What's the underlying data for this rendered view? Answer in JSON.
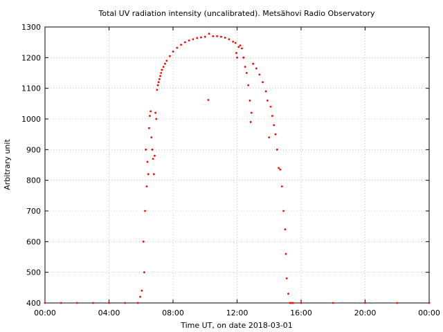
{
  "chart_data": {
    "type": "scatter",
    "title": "Total UV radiation intensity (uncalibrated). Metsähovi Radio Observatory",
    "xlabel": "Time UT, on date 2018-03-01",
    "ylabel": "Arbitrary unit",
    "xlim": [
      0,
      24
    ],
    "ylim": [
      400,
      1300
    ],
    "x_ticks": [
      0,
      4,
      8,
      12,
      16,
      20,
      24
    ],
    "x_tick_labels": [
      "00:00",
      "04:00",
      "08:00",
      "12:00",
      "16:00",
      "20:00",
      "00:00"
    ],
    "y_ticks": [
      400,
      500,
      600,
      700,
      800,
      900,
      1000,
      1100,
      1200,
      1300
    ],
    "y_tick_labels": [
      "400",
      "500",
      "600",
      "700",
      "800",
      "900",
      "1000",
      "1100",
      "1200",
      "1300"
    ],
    "grid": true,
    "marker_color": "#ff0000",
    "series": [
      {
        "x": [
          0,
          1,
          2,
          3,
          4,
          5,
          5.8,
          5.95,
          6.05,
          6.15,
          6.2,
          6.25,
          6.3,
          6.35,
          6.4,
          6.45,
          6.5,
          6.55,
          6.6,
          6.65,
          6.7,
          6.75,
          6.8,
          6.85,
          6.9,
          6.95,
          7.0,
          7.05,
          7.1,
          7.15,
          7.2,
          7.25,
          7.3,
          7.4,
          7.5,
          7.6,
          7.8,
          8.0,
          8.25,
          8.5,
          8.75,
          9.0,
          9.25,
          9.5,
          9.75,
          10.0,
          10.2,
          10.25,
          10.5,
          10.75,
          11.0,
          11.25,
          11.5,
          11.75,
          11.9,
          11.95,
          12.0,
          12.1,
          12.2,
          12.3,
          12.4,
          12.5,
          12.6,
          12.7,
          12.8,
          12.85,
          12.9,
          13.0,
          13.2,
          13.4,
          13.6,
          13.8,
          13.9,
          14.0,
          14.1,
          14.2,
          14.3,
          14.4,
          14.5,
          14.6,
          14.7,
          14.8,
          14.9,
          15.0,
          15.05,
          15.1,
          15.2,
          15.3,
          15.4,
          15.5,
          16,
          18,
          20,
          22,
          24
        ],
        "y": [
          400,
          400,
          400,
          400,
          400,
          400,
          400,
          420,
          440,
          600,
          500,
          700,
          900,
          780,
          860,
          820,
          970,
          1010,
          1025,
          940,
          900,
          870,
          820,
          880,
          1020,
          1000,
          1095,
          1110,
          1120,
          1130,
          1140,
          1150,
          1160,
          1170,
          1180,
          1190,
          1205,
          1220,
          1232,
          1242,
          1250,
          1256,
          1260,
          1264,
          1266,
          1268,
          1062,
          1278,
          1270,
          1270,
          1268,
          1265,
          1260,
          1252,
          1248,
          1215,
          1200,
          1235,
          1240,
          1230,
          1200,
          1170,
          1150,
          1110,
          1060,
          990,
          1020,
          1180,
          1165,
          1145,
          1120,
          1090,
          1060,
          940,
          1040,
          1010,
          980,
          950,
          900,
          840,
          835,
          780,
          700,
          640,
          560,
          480,
          430,
          400,
          400,
          400,
          400,
          400,
          400,
          400,
          400
        ]
      }
    ]
  }
}
